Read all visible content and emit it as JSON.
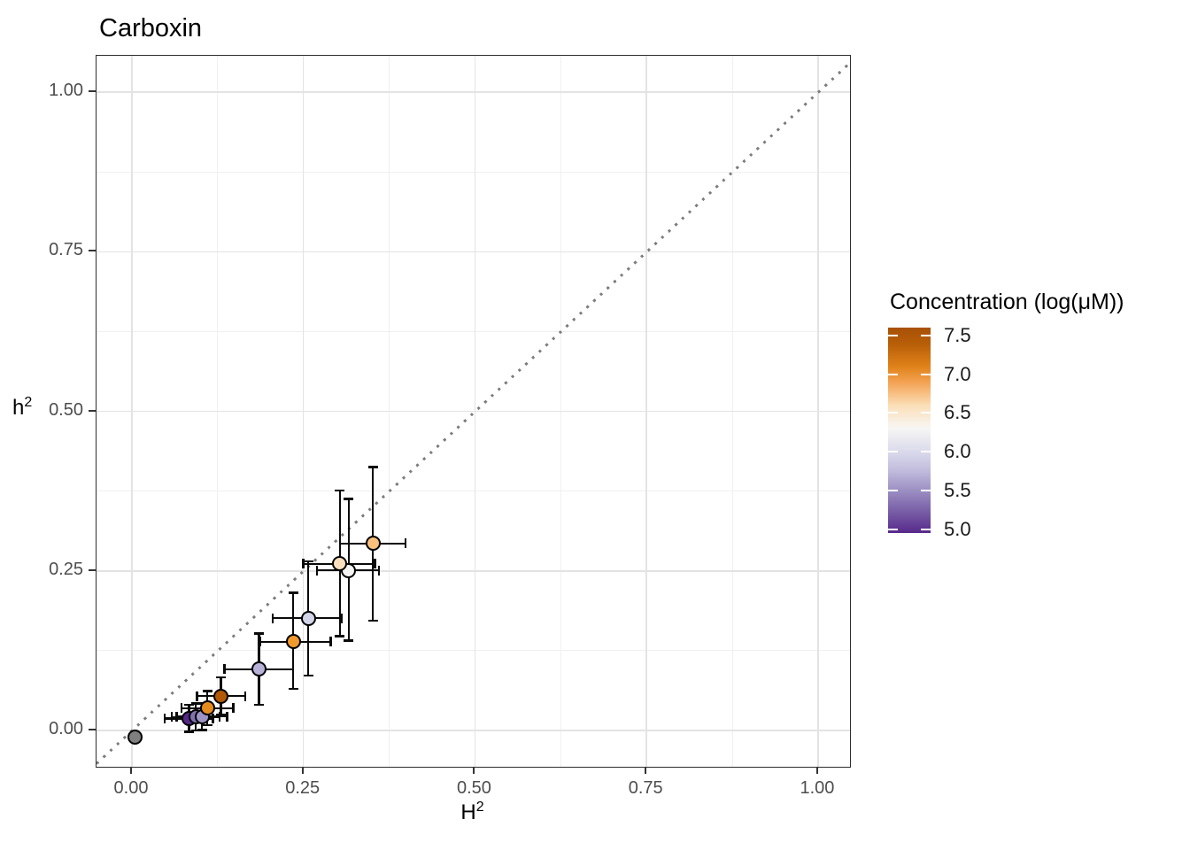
{
  "title": "Carboxin",
  "axes": {
    "x": {
      "title": "H",
      "title_sup": "2",
      "tick_labels": [
        "0.00",
        "0.25",
        "0.50",
        "0.75",
        "1.00"
      ],
      "tick_values": [
        0,
        0.25,
        0.5,
        0.75,
        1.0
      ],
      "minor_values": [
        0.125,
        0.375,
        0.625,
        0.875
      ],
      "range": [
        -0.0516,
        1.0465
      ]
    },
    "y": {
      "title": "h",
      "title_sup": "2",
      "tick_labels": [
        "0.00",
        "0.25",
        "0.50",
        "0.75",
        "1.00"
      ],
      "tick_values": [
        0,
        0.25,
        0.5,
        0.75,
        1.0
      ],
      "minor_values": [
        0.125,
        0.375,
        0.625,
        0.875
      ],
      "range": [
        -0.0569,
        1.057
      ]
    }
  },
  "legend": {
    "title": "Concentration (log(μM))",
    "tick_labels": [
      "7.5",
      "7.0",
      "6.5",
      "6.0",
      "5.5",
      "5.0"
    ],
    "tick_values": [
      7.5,
      7.0,
      6.5,
      6.0,
      5.5,
      5.0
    ],
    "bar_range": [
      4.95,
      7.6
    ],
    "gradient_stops": [
      [
        "0%",
        "#A85107"
      ],
      [
        "8%",
        "#B85E08"
      ],
      [
        "19%",
        "#E0821A"
      ],
      [
        "27%",
        "#F4A456"
      ],
      [
        "38%",
        "#FBDFB8"
      ],
      [
        "49%",
        "#F7F6F4"
      ],
      [
        "60%",
        "#DBDBEC"
      ],
      [
        "70%",
        "#C0BADC"
      ],
      [
        "79%",
        "#9D90C3"
      ],
      [
        "89%",
        "#7A60A8"
      ],
      [
        "100%",
        "#57298B"
      ]
    ]
  },
  "chart_data": {
    "type": "scatter",
    "title": "Carboxin",
    "xlabel": "H^2",
    "ylabel": "h^2",
    "xlim": [
      -0.05,
      1.05
    ],
    "ylim": [
      -0.06,
      1.06
    ],
    "grid": "on",
    "legend_position": "right",
    "identity_line": {
      "shown": true,
      "style": "dotted",
      "color": "#7d7d7d"
    },
    "color_scale": {
      "name": "PuOr",
      "low_value": 5.0,
      "high_value": 7.5
    },
    "points": [
      {
        "x": 0.005,
        "y": -0.01,
        "xmin": null,
        "xmax": null,
        "ymin": null,
        "ymax": null,
        "conc": null,
        "color": "#7F7F7F"
      },
      {
        "x": 0.083,
        "y": 0.019,
        "xmin": 0.048,
        "xmax": 0.118,
        "ymin": -0.002,
        "ymax": 0.04,
        "conc": 5.0,
        "color": "#542788"
      },
      {
        "x": 0.093,
        "y": 0.021,
        "xmin": 0.058,
        "xmax": 0.128,
        "ymin": 0.0,
        "ymax": 0.042,
        "conc": 5.3,
        "color": "#8073AC"
      },
      {
        "x": 0.102,
        "y": 0.022,
        "xmin": 0.065,
        "xmax": 0.139,
        "ymin": 0.001,
        "ymax": 0.043,
        "conc": 5.5,
        "color": "#9E94C4"
      },
      {
        "x": 0.185,
        "y": 0.096,
        "xmin": 0.135,
        "xmax": 0.235,
        "ymin": 0.04,
        "ymax": 0.152,
        "conc": 5.7,
        "color": "#B8B2D8"
      },
      {
        "x": 0.257,
        "y": 0.176,
        "xmin": 0.205,
        "xmax": 0.306,
        "ymin": 0.086,
        "ymax": 0.265,
        "conc": 5.9,
        "color": "#D4D4E8"
      },
      {
        "x": 0.316,
        "y": 0.251,
        "xmin": 0.27,
        "xmax": 0.36,
        "ymin": 0.141,
        "ymax": 0.363,
        "conc": 6.3,
        "color": "#F5F4F2"
      },
      {
        "x": 0.303,
        "y": 0.261,
        "xmin": 0.25,
        "xmax": 0.354,
        "ymin": 0.148,
        "ymax": 0.376,
        "conc": 6.55,
        "color": "#FBE0BE"
      },
      {
        "x": 0.351,
        "y": 0.293,
        "xmin": 0.303,
        "xmax": 0.399,
        "ymin": 0.172,
        "ymax": 0.413,
        "conc": 6.8,
        "color": "#FAC07C"
      },
      {
        "x": 0.235,
        "y": 0.139,
        "xmin": 0.187,
        "xmax": 0.29,
        "ymin": 0.065,
        "ymax": 0.216,
        "conc": 6.9,
        "color": "#F0992C"
      },
      {
        "x": 0.11,
        "y": 0.035,
        "xmin": 0.072,
        "xmax": 0.148,
        "ymin": 0.008,
        "ymax": 0.062,
        "conc": 7.0,
        "color": "#E68C1E"
      },
      {
        "x": 0.13,
        "y": 0.054,
        "xmin": 0.095,
        "xmax": 0.165,
        "ymin": 0.025,
        "ymax": 0.083,
        "conc": 7.5,
        "color": "#B35806"
      }
    ]
  }
}
